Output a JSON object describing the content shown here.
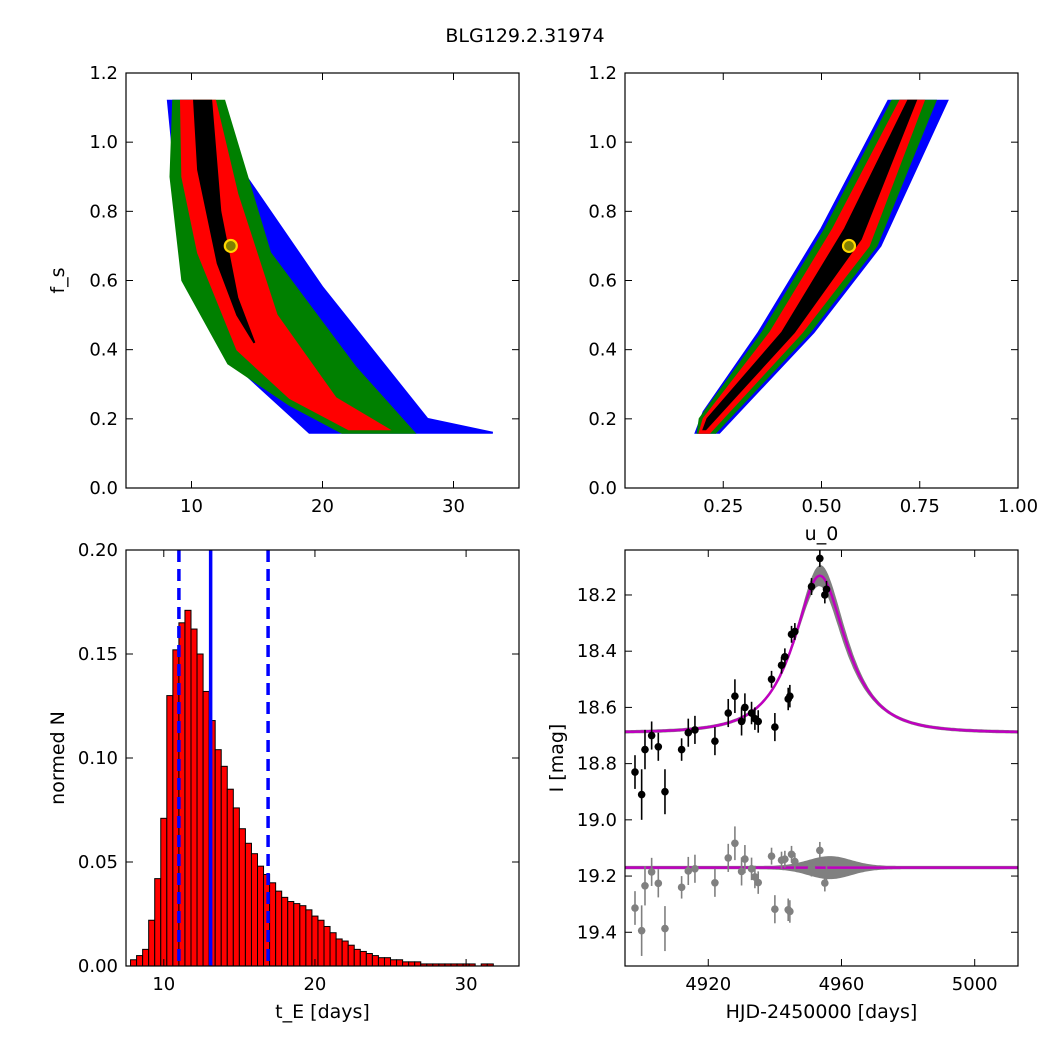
{
  "figure_title": "BLG129.2.31974",
  "colors": {
    "sigma3": "#0000ff",
    "sigma2": "#008000",
    "sigma1": "#ff0000",
    "best": "#000000",
    "marker_fill": "#808000",
    "marker_edge": "#ffd700",
    "hist_bar": "#ff0000",
    "vline": "#0000ff",
    "model": "#bf00bf",
    "model_band": "#808080",
    "data_main": "#000000",
    "data_resid": "#808080"
  },
  "chart_data": [
    {
      "id": "fs-vs-tE",
      "type": "heatmap",
      "title": "",
      "xlabel": "",
      "ylabel": "f_s",
      "xlim": [
        5,
        35
      ],
      "ylim": [
        0.0,
        1.2
      ],
      "xticks": [
        "10",
        "20",
        "30"
      ],
      "yticks": [
        "0.0",
        "0.2",
        "0.4",
        "0.6",
        "0.8",
        "1.0",
        "1.2"
      ],
      "regions": {
        "sigma3": [
          [
            8.2,
            1.12
          ],
          [
            10.2,
            1.12
          ],
          [
            20,
            0.58
          ],
          [
            28,
            0.2
          ],
          [
            33,
            0.16
          ],
          [
            19,
            0.16
          ],
          [
            13.5,
            0.35
          ],
          [
            9.5,
            0.62
          ]
        ],
        "sigma2": [
          [
            8.6,
            1.12
          ],
          [
            12.5,
            1.12
          ],
          [
            16,
            0.68
          ],
          [
            22.5,
            0.35
          ],
          [
            27,
            0.16
          ],
          [
            21.5,
            0.16
          ],
          [
            17.5,
            0.24
          ],
          [
            12.8,
            0.36
          ],
          [
            9.3,
            0.6
          ],
          [
            8.4,
            0.9
          ]
        ],
        "sigma1": [
          [
            9.2,
            1.12
          ],
          [
            11.8,
            1.12
          ],
          [
            13.5,
            0.85
          ],
          [
            16.5,
            0.5
          ],
          [
            21,
            0.26
          ],
          [
            25,
            0.17
          ],
          [
            22,
            0.17
          ],
          [
            17.5,
            0.26
          ],
          [
            13.5,
            0.4
          ],
          [
            10.5,
            0.68
          ],
          [
            9.3,
            0.9
          ]
        ],
        "best": [
          [
            10.2,
            1.12
          ],
          [
            11.5,
            1.12
          ],
          [
            12.2,
            0.8
          ],
          [
            13.5,
            0.55
          ],
          [
            14.8,
            0.42
          ],
          [
            13.5,
            0.5
          ],
          [
            12,
            0.65
          ],
          [
            10.5,
            0.92
          ]
        ]
      },
      "best_fit": {
        "x": 13.0,
        "y": 0.7
      }
    },
    {
      "id": "fs-vs-u0",
      "type": "heatmap",
      "title": "",
      "xlabel": "u_0",
      "ylabel": "",
      "xlim": [
        0.0,
        1.0
      ],
      "ylim": [
        0.0,
        1.2
      ],
      "xticks": [
        "0.25",
        "0.50",
        "0.75",
        "1.00"
      ],
      "yticks": [
        "0.0",
        "0.2",
        "0.4",
        "0.6",
        "0.8",
        "1.0",
        "1.2"
      ],
      "regions": {
        "sigma3": [
          [
            0.18,
            0.16
          ],
          [
            0.24,
            0.16
          ],
          [
            0.48,
            0.45
          ],
          [
            0.65,
            0.7
          ],
          [
            0.82,
            1.12
          ],
          [
            0.67,
            1.12
          ],
          [
            0.5,
            0.75
          ],
          [
            0.34,
            0.45
          ],
          [
            0.2,
            0.22
          ]
        ],
        "sigma2": [
          [
            0.185,
            0.16
          ],
          [
            0.23,
            0.16
          ],
          [
            0.47,
            0.45
          ],
          [
            0.64,
            0.7
          ],
          [
            0.79,
            1.12
          ],
          [
            0.68,
            1.12
          ],
          [
            0.51,
            0.75
          ],
          [
            0.35,
            0.45
          ],
          [
            0.19,
            0.2
          ]
        ],
        "sigma1": [
          [
            0.19,
            0.16
          ],
          [
            0.215,
            0.16
          ],
          [
            0.45,
            0.45
          ],
          [
            0.62,
            0.7
          ],
          [
            0.76,
            1.12
          ],
          [
            0.7,
            1.12
          ],
          [
            0.53,
            0.75
          ],
          [
            0.37,
            0.45
          ],
          [
            0.2,
            0.2
          ]
        ],
        "best": [
          [
            0.2,
            0.17
          ],
          [
            0.205,
            0.17
          ],
          [
            0.43,
            0.45
          ],
          [
            0.6,
            0.72
          ],
          [
            0.74,
            1.12
          ],
          [
            0.72,
            1.12
          ],
          [
            0.56,
            0.75
          ],
          [
            0.4,
            0.45
          ],
          [
            0.21,
            0.2
          ]
        ]
      },
      "best_fit": {
        "x": 0.57,
        "y": 0.7
      }
    },
    {
      "id": "tE-histogram",
      "type": "bar",
      "title": "",
      "xlabel": "t_E [days]",
      "ylabel": "normed N",
      "xlim": [
        7.5,
        33.5
      ],
      "ylim": [
        0.0,
        0.2
      ],
      "xticks": [
        "10",
        "20",
        "30"
      ],
      "yticks": [
        "0.00",
        "0.05",
        "0.10",
        "0.15",
        "0.20"
      ],
      "bin_width": 0.4,
      "bin_start": 7.8,
      "values": [
        0.003,
        0.005,
        0.008,
        0.022,
        0.042,
        0.071,
        0.13,
        0.152,
        0.165,
        0.171,
        0.162,
        0.15,
        0.132,
        0.118,
        0.104,
        0.096,
        0.085,
        0.076,
        0.066,
        0.059,
        0.054,
        0.048,
        0.044,
        0.04,
        0.036,
        0.033,
        0.031,
        0.03,
        0.029,
        0.027,
        0.024,
        0.022,
        0.019,
        0.016,
        0.013,
        0.012,
        0.01,
        0.008,
        0.007,
        0.006,
        0.005,
        0.004,
        0.004,
        0.003,
        0.003,
        0.002,
        0.002,
        0.002,
        0.001,
        0.001,
        0.001,
        0.001,
        0.001,
        0.001,
        0.001,
        0.001,
        0.001,
        0.0,
        0.001,
        0.001,
        0.0,
        0.0,
        0.0,
        0.0
      ],
      "vlines": [
        {
          "x": 11.0,
          "style": "dashed"
        },
        {
          "x": 13.1,
          "style": "solid"
        },
        {
          "x": 16.9,
          "style": "dashed"
        }
      ]
    },
    {
      "id": "lightcurve",
      "type": "scatter",
      "title": "",
      "xlabel": "HJD-2450000 [days]",
      "ylabel": "I [mag]",
      "xlim": [
        4895,
        5013
      ],
      "ylim": [
        19.52,
        18.04
      ],
      "xticks": [
        "4920",
        "4960",
        "5000"
      ],
      "yticks": [
        "18.2",
        "18.4",
        "18.6",
        "18.8",
        "19.0",
        "19.2",
        "19.4"
      ],
      "model": {
        "t0": 4953.5,
        "u0": 0.57,
        "tE": 13.1,
        "baseline": 18.69,
        "fs": 0.7
      },
      "residual_offset": 19.17,
      "points": [
        {
          "x": 4898,
          "y": 18.83,
          "err": 0.06
        },
        {
          "x": 4900,
          "y": 18.91,
          "err": 0.09
        },
        {
          "x": 4901,
          "y": 18.75,
          "err": 0.07
        },
        {
          "x": 4903,
          "y": 18.7,
          "err": 0.05
        },
        {
          "x": 4905,
          "y": 18.74,
          "err": 0.05
        },
        {
          "x": 4907,
          "y": 18.9,
          "err": 0.08
        },
        {
          "x": 4912,
          "y": 18.75,
          "err": 0.04
        },
        {
          "x": 4914,
          "y": 18.69,
          "err": 0.05
        },
        {
          "x": 4916,
          "y": 18.68,
          "err": 0.05
        },
        {
          "x": 4922,
          "y": 18.72,
          "err": 0.05
        },
        {
          "x": 4926,
          "y": 18.62,
          "err": 0.05
        },
        {
          "x": 4928,
          "y": 18.56,
          "err": 0.06
        },
        {
          "x": 4930,
          "y": 18.65,
          "err": 0.05
        },
        {
          "x": 4931,
          "y": 18.6,
          "err": 0.05
        },
        {
          "x": 4933,
          "y": 18.62,
          "err": 0.04
        },
        {
          "x": 4934,
          "y": 18.64,
          "err": 0.04
        },
        {
          "x": 4935,
          "y": 18.65,
          "err": 0.04
        },
        {
          "x": 4939,
          "y": 18.5,
          "err": 0.03
        },
        {
          "x": 4940,
          "y": 18.67,
          "err": 0.05
        },
        {
          "x": 4942,
          "y": 18.45,
          "err": 0.03
        },
        {
          "x": 4943,
          "y": 18.42,
          "err": 0.03
        },
        {
          "x": 4944,
          "y": 18.57,
          "err": 0.04
        },
        {
          "x": 4944.5,
          "y": 18.56,
          "err": 0.04
        },
        {
          "x": 4945,
          "y": 18.34,
          "err": 0.03
        },
        {
          "x": 4946,
          "y": 18.33,
          "err": 0.03
        },
        {
          "x": 4951,
          "y": 18.17,
          "err": 0.03
        },
        {
          "x": 4953.5,
          "y": 18.07,
          "err": 0.03
        },
        {
          "x": 4955,
          "y": 18.2,
          "err": 0.03
        },
        {
          "x": 4955.5,
          "y": 18.18,
          "err": 0.03
        }
      ]
    }
  ]
}
